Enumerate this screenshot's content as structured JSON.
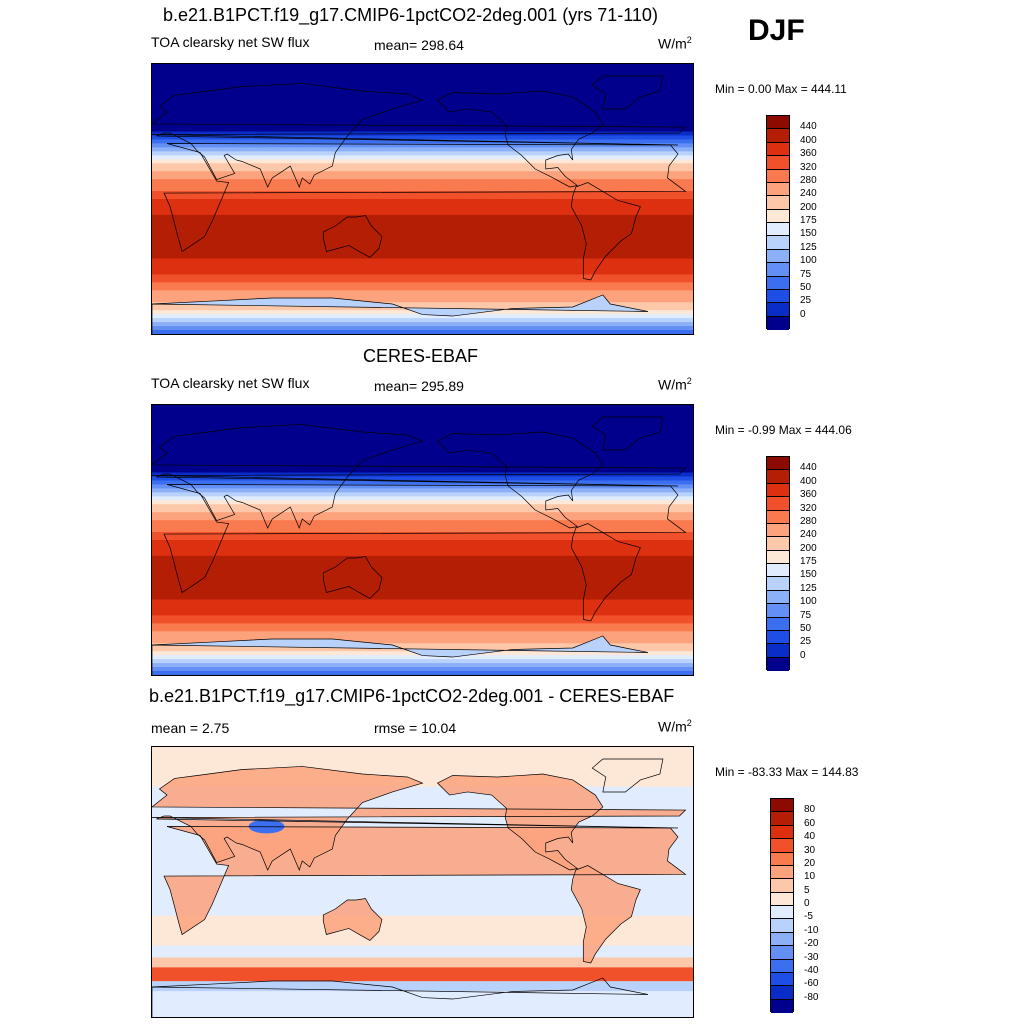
{
  "season": "DJF",
  "colors": {
    "abs": [
      "#00008c",
      "#0a2dc8",
      "#1e4ee6",
      "#3c6ef0",
      "#6490f5",
      "#8cb0f8",
      "#b9d2fc",
      "#e1ecfe",
      "#fde8d8",
      "#fdc8aa",
      "#fca27c",
      "#fa7a50",
      "#f0502a",
      "#dc3010",
      "#b41e05",
      "#8c0a00"
    ],
    "diff": [
      "#00008c",
      "#0a2dc8",
      "#1e4ee6",
      "#3c6ef0",
      "#6490f5",
      "#8cb0f8",
      "#b9d2fc",
      "#e1ecfe",
      "#fde8d8",
      "#fdc8aa",
      "#fca27c",
      "#fa7a50",
      "#f0502a",
      "#dc3010",
      "#b41e05",
      "#8c0a00"
    ]
  },
  "panels": [
    {
      "title": "b.e21.B1PCT.f19_g17.CMIP6-1pctCO2-2deg.001 (yrs 71-110)",
      "left_label": "TOA clearsky net SW flux",
      "center_label": "mean= 298.64",
      "units_base": "W/m",
      "units_exp": "2",
      "minmax": "Min =   0.00 Max = 444.11",
      "ticks": [
        "440",
        "400",
        "360",
        "320",
        "280",
        "240",
        "200",
        "175",
        "150",
        "125",
        "100",
        "75",
        "50",
        "25",
        "0"
      ],
      "type": "abs",
      "field": "model"
    },
    {
      "title": "CERES-EBAF",
      "left_label": "TOA clearsky net SW flux",
      "center_label": "mean= 295.89",
      "units_base": "W/m",
      "units_exp": "2",
      "minmax": "Min =  -0.99 Max = 444.06",
      "ticks": [
        "440",
        "400",
        "360",
        "320",
        "280",
        "240",
        "200",
        "175",
        "150",
        "125",
        "100",
        "75",
        "50",
        "25",
        "0"
      ],
      "type": "abs",
      "field": "obs"
    },
    {
      "title": "b.e21.B1PCT.f19_g17.CMIP6-1pctCO2-2deg.001 - CERES-EBAF",
      "left_label": "mean =   2.75",
      "center_label": "rmse =  10.04",
      "units_base": "W/m",
      "units_exp": "2",
      "minmax": "Min = -83.33 Max = 144.83",
      "ticks": [
        "80",
        "60",
        "40",
        "30",
        "20",
        "10",
        "5",
        "0",
        "-5",
        "-10",
        "-20",
        "-30",
        "-40",
        "-60",
        "-80"
      ],
      "type": "diff",
      "field": "diff"
    }
  ]
}
